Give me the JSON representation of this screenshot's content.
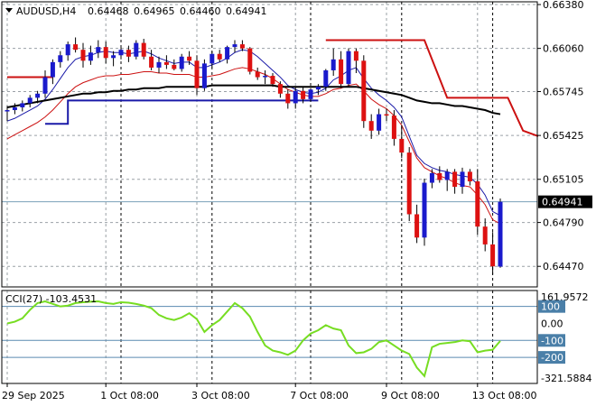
{
  "chart_data": {
    "type": "candlestick",
    "header": {
      "symbol_tf": "AUDUSD,H4",
      "open": "0.64468",
      "high": "0.64965",
      "low": "0.64460",
      "close": "0.64941"
    },
    "price_axis": {
      "min": 0.6432,
      "max": 0.664,
      "ticks": [
        "0.66380",
        "0.66060",
        "0.65745",
        "0.65425",
        "0.65105",
        "0.64790",
        "0.64470"
      ],
      "tick_values": [
        0.6638,
        0.6606,
        0.65745,
        0.65425,
        0.65105,
        0.6479,
        0.6447
      ],
      "current_price_label": "0.64941",
      "current_price": 0.64941
    },
    "time_axis": {
      "labels": [
        "29 Sep 2025",
        "1 Oct 08:00",
        "3 Oct 08:00",
        "7 Oct 08:00",
        "9 Oct 08:00",
        "13 Oct 08:00"
      ],
      "label_bars": [
        0,
        13,
        25,
        38,
        50,
        62
      ]
    },
    "candles": [
      [
        0.656,
        0.6564,
        0.6553,
        0.6561
      ],
      [
        0.6561,
        0.6566,
        0.6558,
        0.6563
      ],
      [
        0.6563,
        0.6568,
        0.656,
        0.6566
      ],
      [
        0.6566,
        0.6572,
        0.6563,
        0.657
      ],
      [
        0.657,
        0.6575,
        0.6566,
        0.6573
      ],
      [
        0.6573,
        0.659,
        0.657,
        0.6585
      ],
      [
        0.6585,
        0.6598,
        0.658,
        0.6596
      ],
      [
        0.6596,
        0.6604,
        0.6592,
        0.6601
      ],
      [
        0.6601,
        0.6611,
        0.6597,
        0.6609
      ],
      [
        0.6609,
        0.6614,
        0.6603,
        0.6605
      ],
      [
        0.6605,
        0.661,
        0.6592,
        0.6597
      ],
      [
        0.6597,
        0.6608,
        0.6594,
        0.6603
      ],
      [
        0.6603,
        0.6612,
        0.6599,
        0.6607
      ],
      [
        0.6607,
        0.6611,
        0.6595,
        0.6599
      ],
      [
        0.6599,
        0.6604,
        0.6593,
        0.6601
      ],
      [
        0.6601,
        0.6607,
        0.6598,
        0.6605
      ],
      [
        0.6605,
        0.6608,
        0.6596,
        0.66
      ],
      [
        0.66,
        0.6612,
        0.6598,
        0.661
      ],
      [
        0.661,
        0.6613,
        0.6598,
        0.66
      ],
      [
        0.66,
        0.6605,
        0.659,
        0.6592
      ],
      [
        0.6592,
        0.66,
        0.6588,
        0.6596
      ],
      [
        0.6596,
        0.6601,
        0.6591,
        0.6594
      ],
      [
        0.6594,
        0.6598,
        0.659,
        0.6591
      ],
      [
        0.6591,
        0.6602,
        0.6589,
        0.66
      ],
      [
        0.66,
        0.6604,
        0.6594,
        0.6597
      ],
      [
        0.6597,
        0.6601,
        0.6572,
        0.6577
      ],
      [
        0.6577,
        0.6598,
        0.6575,
        0.6595
      ],
      [
        0.6595,
        0.6604,
        0.6592,
        0.6602
      ],
      [
        0.6602,
        0.6605,
        0.6596,
        0.6598
      ],
      [
        0.6598,
        0.6608,
        0.6595,
        0.6607
      ],
      [
        0.6607,
        0.6612,
        0.6603,
        0.6609
      ],
      [
        0.6609,
        0.6612,
        0.6604,
        0.6606
      ],
      [
        0.6606,
        0.6607,
        0.6587,
        0.6589
      ],
      [
        0.6589,
        0.6592,
        0.6583,
        0.6585
      ],
      [
        0.6585,
        0.659,
        0.658,
        0.6586
      ],
      [
        0.6586,
        0.6588,
        0.6578,
        0.658
      ],
      [
        0.658,
        0.6582,
        0.657,
        0.6573
      ],
      [
        0.6573,
        0.6576,
        0.6562,
        0.6566
      ],
      [
        0.6566,
        0.6578,
        0.6562,
        0.6575
      ],
      [
        0.6575,
        0.6578,
        0.6566,
        0.6569
      ],
      [
        0.6569,
        0.6577,
        0.6567,
        0.6576
      ],
      [
        0.6576,
        0.658,
        0.6572,
        0.6578
      ],
      [
        0.6578,
        0.6591,
        0.6575,
        0.659
      ],
      [
        0.659,
        0.6606,
        0.6586,
        0.6598
      ],
      [
        0.6598,
        0.6604,
        0.6577,
        0.658
      ],
      [
        0.658,
        0.6606,
        0.6578,
        0.6604
      ],
      [
        0.6604,
        0.6606,
        0.6588,
        0.6597
      ],
      [
        0.6597,
        0.6601,
        0.6548,
        0.6553
      ],
      [
        0.6553,
        0.6558,
        0.654,
        0.6546
      ],
      [
        0.6546,
        0.6562,
        0.6543,
        0.6558
      ],
      [
        0.6558,
        0.6562,
        0.6553,
        0.6557
      ],
      [
        0.6557,
        0.6561,
        0.6535,
        0.654
      ],
      [
        0.654,
        0.655,
        0.6526,
        0.653
      ],
      [
        0.653,
        0.6534,
        0.648,
        0.6485
      ],
      [
        0.6485,
        0.6492,
        0.6464,
        0.6468
      ],
      [
        0.6468,
        0.6511,
        0.6462,
        0.6508
      ],
      [
        0.6508,
        0.6518,
        0.6504,
        0.6515
      ],
      [
        0.6515,
        0.652,
        0.6508,
        0.651
      ],
      [
        0.651,
        0.6518,
        0.6502,
        0.6516
      ],
      [
        0.6516,
        0.6518,
        0.65,
        0.6505
      ],
      [
        0.6505,
        0.6519,
        0.65,
        0.6516
      ],
      [
        0.6516,
        0.6518,
        0.6506,
        0.6509
      ],
      [
        0.6509,
        0.6518,
        0.647,
        0.6476
      ],
      [
        0.6476,
        0.6482,
        0.6458,
        0.6463
      ],
      [
        0.6463,
        0.6472,
        0.6441,
        0.6447
      ],
      [
        0.64468,
        0.64965,
        0.6446,
        0.64941
      ]
    ],
    "overlays": [
      {
        "color": "#1a1aa8",
        "values": [
          0.6553,
          0.6555,
          0.6558,
          0.6561,
          0.6564,
          0.6569,
          0.6576,
          0.6584,
          0.6592,
          0.6598,
          0.66,
          0.6601,
          0.6603,
          0.6604,
          0.6603,
          0.6603,
          0.6602,
          0.6603,
          0.6604,
          0.6602,
          0.6599,
          0.6597,
          0.6595,
          0.6596,
          0.6596,
          0.6592,
          0.6592,
          0.6594,
          0.6596,
          0.6599,
          0.6603,
          0.6605,
          0.6604,
          0.66,
          0.6595,
          0.659,
          0.6585,
          0.6579,
          0.6576,
          0.6574,
          0.6573,
          0.6574,
          0.6577,
          0.6583,
          0.6586,
          0.659,
          0.6592,
          0.6584,
          0.6577,
          0.6572,
          0.6568,
          0.6563,
          0.6556,
          0.6542,
          0.6528,
          0.6522,
          0.6519,
          0.6517,
          0.6516,
          0.6514,
          0.6513,
          0.6512,
          0.6507,
          0.6499,
          0.6487,
          0.6484
        ]
      },
      {
        "color": "#cc1111",
        "values": [
          0.654,
          0.6543,
          0.6546,
          0.6549,
          0.6552,
          0.6556,
          0.6561,
          0.6567,
          0.6573,
          0.6578,
          0.6581,
          0.6583,
          0.6585,
          0.6586,
          0.6586,
          0.6587,
          0.6587,
          0.6588,
          0.6589,
          0.6589,
          0.6588,
          0.6588,
          0.6587,
          0.6587,
          0.6587,
          0.6585,
          0.6585,
          0.6586,
          0.6587,
          0.6589,
          0.6591,
          0.6592,
          0.6591,
          0.6589,
          0.6587,
          0.6584,
          0.658,
          0.6576,
          0.6574,
          0.6572,
          0.6571,
          0.6571,
          0.6573,
          0.6576,
          0.6577,
          0.6579,
          0.658,
          0.6575,
          0.6569,
          0.6565,
          0.6562,
          0.6557,
          0.655,
          0.6538,
          0.6526,
          0.6519,
          0.6516,
          0.6513,
          0.6511,
          0.6508,
          0.6506,
          0.6505,
          0.6499,
          0.6492,
          0.6481,
          0.6478
        ]
      },
      {
        "color": "#000000",
        "values": [
          0.6563,
          0.6564,
          0.6565,
          0.6566,
          0.6567,
          0.6568,
          0.6569,
          0.657,
          0.6571,
          0.6572,
          0.6573,
          0.6573,
          0.6574,
          0.6574,
          0.6575,
          0.6575,
          0.6576,
          0.6576,
          0.6577,
          0.6577,
          0.6577,
          0.6578,
          0.6578,
          0.6578,
          0.6578,
          0.6578,
          0.6578,
          0.6579,
          0.6579,
          0.6579,
          0.6579,
          0.6579,
          0.6579,
          0.6579,
          0.6579,
          0.6579,
          0.6578,
          0.6578,
          0.6578,
          0.6578,
          0.6578,
          0.6578,
          0.6578,
          0.6578,
          0.6578,
          0.6578,
          0.6578,
          0.6577,
          0.6576,
          0.6575,
          0.6574,
          0.6573,
          0.6572,
          0.657,
          0.6568,
          0.6567,
          0.6566,
          0.6566,
          0.6565,
          0.6564,
          0.6564,
          0.6563,
          0.6562,
          0.6561,
          0.6559,
          0.6558
        ]
      }
    ],
    "step_lines": [
      {
        "color": "#1a1aa8",
        "points": [
          [
            5,
            0.6551
          ],
          [
            8,
            0.6551
          ],
          [
            8,
            0.6568
          ],
          [
            41,
            0.6568
          ]
        ]
      },
      {
        "color": "#cc1111",
        "points": [
          [
            0,
            0.6585
          ],
          [
            6,
            0.6585
          ]
        ]
      },
      {
        "color": "#cc1111",
        "points": [
          [
            42,
            0.6612
          ],
          [
            55,
            0.6612
          ],
          [
            58,
            0.657
          ],
          [
            66,
            0.657
          ],
          [
            68,
            0.6546
          ],
          [
            70,
            0.6542
          ]
        ]
      }
    ],
    "dashed_time_lines_bars": [
      13,
      25,
      38,
      50,
      62
    ],
    "cci": {
      "label": "CCI(27) -103.4531",
      "top_label": "161.9572",
      "bottom_label": "-321.5884",
      "min": -321.5884,
      "max": 161.9572,
      "levels": [
        100,
        -100,
        -200
      ],
      "level_labels": [
        "100",
        "-100",
        "-200"
      ],
      "zero_label": "0.00",
      "current": -103.4531,
      "values": [
        0,
        10,
        30,
        80,
        120,
        130,
        115,
        100,
        105,
        120,
        125,
        128,
        130,
        120,
        115,
        125,
        122,
        115,
        105,
        90,
        50,
        30,
        20,
        35,
        60,
        25,
        -50,
        -10,
        20,
        70,
        120,
        90,
        40,
        -50,
        -130,
        -160,
        -170,
        -185,
        -160,
        -100,
        -60,
        -40,
        -10,
        -30,
        -40,
        -130,
        -175,
        -170,
        -150,
        -110,
        -100,
        -130,
        -160,
        -180,
        -260,
        -310,
        -140,
        -120,
        -115,
        -110,
        -100,
        -105,
        -170,
        -160,
        -155,
        -103
      ]
    }
  }
}
